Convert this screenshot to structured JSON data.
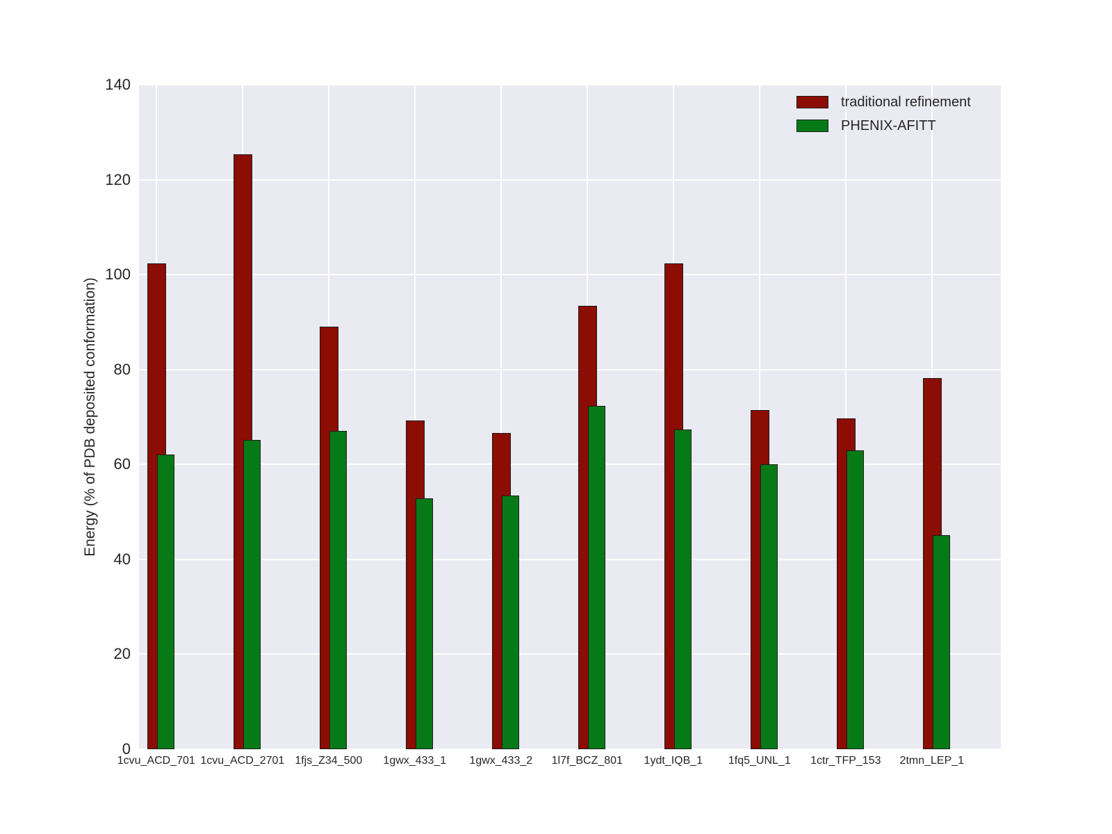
{
  "chart_data": {
    "type": "bar",
    "title": "",
    "xlabel": "",
    "ylabel": "Energy (% of PDB deposited conformation)",
    "ylim": [
      0,
      140
    ],
    "yticks": [
      0,
      20,
      40,
      60,
      80,
      100,
      120,
      140
    ],
    "grid": true,
    "legend_position": "upper right",
    "bar_style": "overlapping (second series offset right, drawn on top)",
    "categories": [
      "1cvu_ACD_701",
      "1cvu_ACD_2701",
      "1fjs_Z34_500",
      "1gwx_433_1",
      "1gwx_433_2",
      "1l7f_BCZ_801",
      "1ydt_IQB_1",
      "1fq5_UNL_1",
      "1ctr_TFP_153",
      "2tmn_LEP_1"
    ],
    "series": [
      {
        "name": "traditional refinement",
        "color": "#8b0d03",
        "values": [
          102.4,
          125.4,
          89.1,
          69.2,
          66.6,
          93.5,
          102.4,
          71.5,
          69.7,
          78.2
        ]
      },
      {
        "name": "PHENIX-AFITT",
        "color": "#077a18",
        "values": [
          62.1,
          65.1,
          67.0,
          52.8,
          53.5,
          72.4,
          67.3,
          60.1,
          62.9,
          45.1
        ]
      }
    ],
    "colors": {
      "plot_background": "#eaeaf2",
      "figure_background": "#ffffff",
      "gridline": "#ffffff",
      "bar_edge": "#1c1c1c",
      "text": "#262626"
    }
  }
}
